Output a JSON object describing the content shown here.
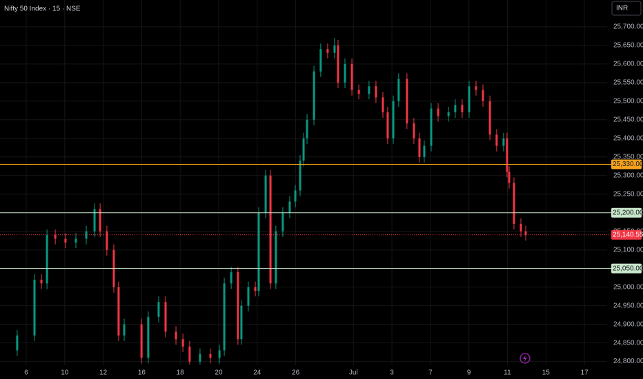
{
  "chart_data": {
    "type": "candlestick",
    "title": "Nifty 50 Index · 15 · NSE",
    "currency": "INR",
    "x": [
      -0.47,
      0.43,
      0.79,
      1.08,
      1.51,
      2.04,
      2.58,
      3.12,
      3.55,
      3.84,
      4.19,
      4.55,
      4.8,
      5.09,
      5.99,
      6.34,
      6.88,
      7.24,
      7.78,
      8.14,
      8.49,
      9.03,
      9.57,
      10.04,
      10.29,
      10.65,
      11.0,
      11.18,
      11.54,
      11.9,
      12.08,
      12.44,
      12.69,
      12.97,
      13.33,
      13.69,
      13.98,
      14.23,
      14.41,
      14.59,
      14.95,
      15.3,
      15.66,
      16.02,
      16.2,
      16.56,
      16.92,
      17.28,
      17.81,
      18.17,
      18.53,
      18.78,
      19.07,
      19.35,
      19.78,
      20.14,
      20.43,
      20.68,
      21.04,
      21.4,
      21.94,
      22.29,
      22.65,
      23.01,
      23.37,
      23.73,
      24.09,
      24.44,
      24.8,
      24.98,
      25.09,
      25.34,
      25.7,
      25.95
    ],
    "open": [
      24830,
      24870,
      25020,
      25010,
      25140,
      25130,
      25120,
      25130,
      25150,
      25210,
      25150,
      25100,
      25000,
      24870,
      24900,
      24810,
      24920,
      24960,
      24880,
      24860,
      24840,
      24800,
      24820,
      24810,
      24830,
      25010,
      25040,
      24860,
      24950,
      25000,
      24990,
      25200,
      25300,
      25010,
      25150,
      25200,
      25230,
      25260,
      25340,
      25400,
      25450,
      25580,
      25640,
      25630,
      25650,
      25550,
      25600,
      25530,
      25520,
      25540,
      25510,
      25470,
      25400,
      25500,
      25560,
      25440,
      25400,
      25350,
      25380,
      25480,
      25460,
      25470,
      25490,
      25470,
      25540,
      25530,
      25500,
      25410,
      25380,
      25400,
      25310,
      25280,
      25170,
      25150
    ],
    "high": [
      24885,
      25035,
      25035,
      25155,
      25155,
      25145,
      25145,
      25165,
      25225,
      25225,
      25165,
      25115,
      25015,
      24915,
      24915,
      24935,
      24975,
      24975,
      24895,
      24875,
      24855,
      24835,
      24835,
      24845,
      25025,
      25055,
      25055,
      24965,
      25015,
      25015,
      25215,
      25315,
      25315,
      25165,
      25215,
      25245,
      25275,
      25355,
      25415,
      25465,
      25595,
      25655,
      25655,
      25670,
      25665,
      25615,
      25615,
      25545,
      25555,
      25555,
      25525,
      25485,
      25515,
      25575,
      25575,
      25455,
      25415,
      25395,
      25495,
      25495,
      25485,
      25505,
      25505,
      25555,
      25555,
      25545,
      25515,
      25425,
      25415,
      25415,
      25325,
      25295,
      25185,
      25165
    ],
    "low": [
      24815,
      24855,
      24995,
      24995,
      25115,
      25105,
      25105,
      25115,
      25135,
      25135,
      25085,
      24985,
      24855,
      24855,
      24795,
      24795,
      24905,
      24865,
      24845,
      24825,
      24792,
      24792,
      24795,
      24795,
      24815,
      24995,
      24845,
      24845,
      24935,
      24975,
      24975,
      25185,
      24995,
      24995,
      25135,
      25185,
      25215,
      25245,
      25325,
      25385,
      25435,
      25565,
      25615,
      25615,
      25535,
      25535,
      25515,
      25505,
      25505,
      25495,
      25455,
      25385,
      25385,
      25485,
      25425,
      25385,
      25335,
      25335,
      25365,
      25445,
      25445,
      25455,
      25455,
      25455,
      25515,
      25485,
      25395,
      25365,
      25365,
      25295,
      25265,
      25155,
      25135,
      25125
    ],
    "close": [
      24870,
      25020,
      25010,
      25140,
      25130,
      25120,
      25130,
      25150,
      25210,
      25150,
      25100,
      25000,
      24870,
      24900,
      24810,
      24920,
      24960,
      24880,
      24860,
      24840,
      24800,
      24820,
      24810,
      24830,
      25010,
      25040,
      24860,
      24950,
      25000,
      24990,
      25200,
      25300,
      25010,
      25150,
      25200,
      25230,
      25260,
      25340,
      25400,
      25450,
      25580,
      25640,
      25630,
      25650,
      25550,
      25600,
      25530,
      25520,
      25540,
      25510,
      25470,
      25400,
      25500,
      25560,
      25440,
      25400,
      25350,
      25380,
      25480,
      25460,
      25470,
      25490,
      25470,
      25540,
      25530,
      25500,
      25410,
      25380,
      25400,
      25310,
      25280,
      25170,
      25150,
      25140
    ],
    "up_color": "#089981",
    "down_color": "#f23645",
    "xlim": [
      -1.362,
      30.18
    ],
    "xticks": [
      {
        "value": 0,
        "label": "6"
      },
      {
        "value": 2,
        "label": "10"
      },
      {
        "value": 4,
        "label": "12"
      },
      {
        "value": 6,
        "label": "16"
      },
      {
        "value": 8,
        "label": "18"
      },
      {
        "value": 10,
        "label": "20"
      },
      {
        "value": 12,
        "label": "24"
      },
      {
        "value": 14,
        "label": "26"
      },
      {
        "value": 17,
        "label": "Jul"
      },
      {
        "value": 19,
        "label": "3"
      },
      {
        "value": 21,
        "label": "7"
      },
      {
        "value": 23,
        "label": "9"
      },
      {
        "value": 25,
        "label": "11"
      },
      {
        "value": 27,
        "label": "15"
      },
      {
        "value": 29,
        "label": "17"
      }
    ],
    "ylim": [
      24790,
      25772
    ],
    "yticks": [
      {
        "value": 24800,
        "label": "24,800.00"
      },
      {
        "value": 24850,
        "label": "24,850.00"
      },
      {
        "value": 24900,
        "label": "24,900.00"
      },
      {
        "value": 24950,
        "label": "24,950.00"
      },
      {
        "value": 25000,
        "label": "25,000.00"
      },
      {
        "value": 25050,
        "label": "25,050.00"
      },
      {
        "value": 25100,
        "label": "25,100.00"
      },
      {
        "value": 25150,
        "label": "25,150.00"
      },
      {
        "value": 25200,
        "label": "25,200.00"
      },
      {
        "value": 25250,
        "label": "25,250.00"
      },
      {
        "value": 25300,
        "label": "25,300.00"
      },
      {
        "value": 25350,
        "label": "25,350.00"
      },
      {
        "value": 25400,
        "label": "25,400.00"
      },
      {
        "value": 25450,
        "label": "25,450.00"
      },
      {
        "value": 25500,
        "label": "25,500.00"
      },
      {
        "value": 25550,
        "label": "25,550.00"
      },
      {
        "value": 25600,
        "label": "25,600.00"
      },
      {
        "value": 25650,
        "label": "25,650.00"
      },
      {
        "value": 25700,
        "label": "25,700.00"
      }
    ],
    "grid": true,
    "levels": [
      {
        "value": 25330,
        "label": "25,330.00",
        "color": "#f7a21b"
      },
      {
        "value": 25200,
        "label": "25,200.00",
        "color": "#c8e6c9"
      },
      {
        "value": 25050,
        "label": "25,050.00",
        "color": "#c8e6c9"
      }
    ],
    "last_price": {
      "value": 25140.55,
      "label": "25,140.55",
      "color": "#f23645"
    }
  }
}
